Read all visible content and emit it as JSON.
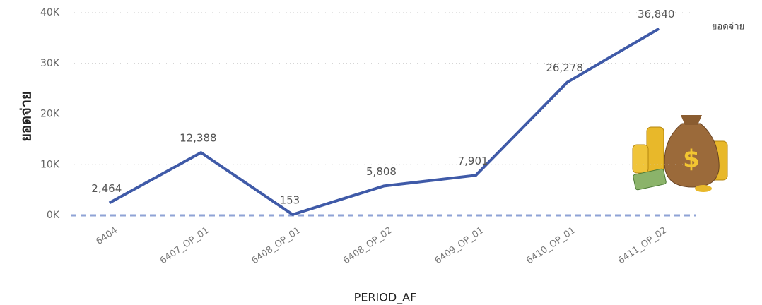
{
  "chart_data": {
    "type": "line",
    "x_label": "PERIOD_AF",
    "y_label": "ยอดจ่าย",
    "categories": [
      "6404",
      "6407_OP_01",
      "6408_OP_01",
      "6408_OP_02",
      "6409_OP_01",
      "6410_OP_01",
      "6411_OP_02"
    ],
    "series": [
      {
        "name": "ยอดจ่าย",
        "color": "#3f5aa8",
        "values": [
          2464,
          12388,
          153,
          5808,
          7901,
          26278,
          36840
        ],
        "value_labels": [
          "2,464",
          "12,388",
          "153",
          "5,808",
          "7,901",
          "26,278",
          "36,840"
        ]
      }
    ],
    "ylim": [
      0,
      40000
    ],
    "yticks": [
      {
        "value": 0,
        "label": "0K"
      },
      {
        "value": 10000,
        "label": "10K"
      },
      {
        "value": 20000,
        "label": "20K"
      },
      {
        "value": 30000,
        "label": "30K"
      },
      {
        "value": 40000,
        "label": "40K"
      }
    ],
    "grid": true
  }
}
